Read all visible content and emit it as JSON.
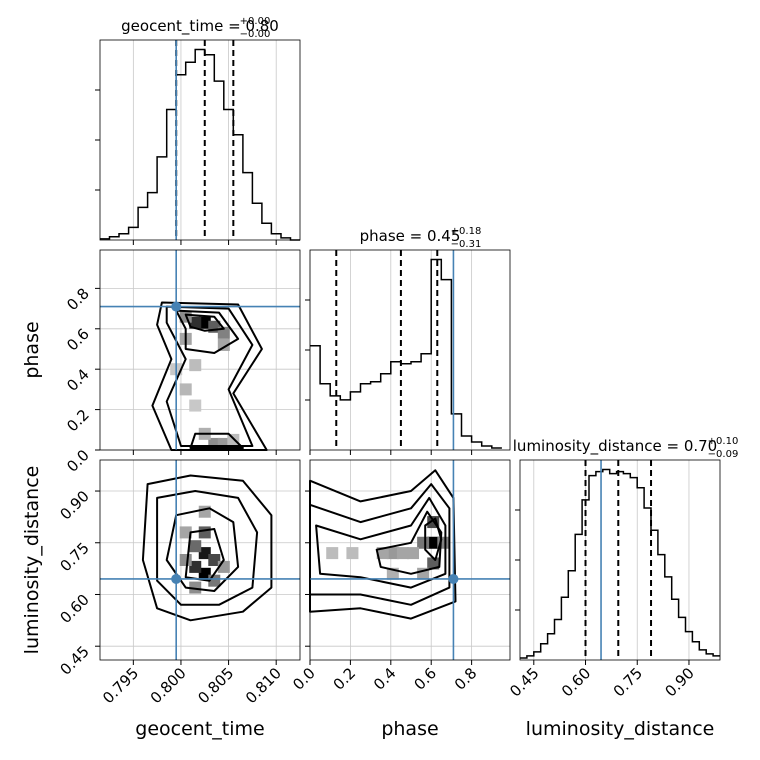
{
  "chart_data": {
    "type": "corner",
    "parameters": [
      "geocent_time",
      "phase",
      "luminosity_distance"
    ],
    "axis_labels": [
      "geocent_time",
      "phase",
      "luminosity_distance"
    ],
    "ranges": [
      [
        0.7915,
        0.8125
      ],
      [
        0.0,
        0.99
      ],
      [
        0.41,
        0.99
      ]
    ],
    "ticks": {
      "geocent_time": {
        "values": [
          0.795,
          0.8,
          0.805,
          0.81
        ],
        "labels": [
          "0.795",
          "0.800",
          "0.805",
          "0.810"
        ]
      },
      "phase": {
        "values": [
          0.0,
          0.2,
          0.4,
          0.6,
          0.8
        ],
        "labels": [
          "0.0",
          "0.2",
          "0.4",
          "0.6",
          "0.8"
        ]
      },
      "luminosity_distance": {
        "values": [
          0.45,
          0.6,
          0.75,
          0.9
        ],
        "labels": [
          "0.45",
          "0.60",
          "0.75",
          "0.90"
        ]
      }
    },
    "truths": [
      0.7995,
      0.71,
      0.645
    ],
    "truth_color": "#4682b4",
    "titles": [
      {
        "param": "geocent_time",
        "median": "0.80",
        "plus": "+0.00",
        "minus": "−0.00"
      },
      {
        "param": "phase",
        "median": "0.45",
        "plus": "+0.18",
        "minus": "−0.31"
      },
      {
        "param": "luminosity_distance",
        "median": "0.70",
        "plus": "+0.10",
        "minus": "−0.09"
      }
    ],
    "quantiles": {
      "geocent_time": [
        0.7995,
        0.8025,
        0.8055
      ],
      "phase": [
        0.13,
        0.45,
        0.63
      ],
      "luminosity_distance": [
        0.6,
        0.695,
        0.79
      ]
    },
    "histograms": {
      "geocent_time": {
        "edges": [
          0.7915,
          0.7925,
          0.7935,
          0.7945,
          0.7955,
          0.7965,
          0.7975,
          0.7985,
          0.7995,
          0.8005,
          0.8015,
          0.8025,
          0.8035,
          0.8045,
          0.8055,
          0.8065,
          0.8075,
          0.8085,
          0.8095,
          0.8105,
          0.8115,
          0.8125
        ],
        "counts": [
          1,
          3,
          6,
          12,
          31,
          45,
          79,
          124,
          157,
          169,
          181,
          176,
          151,
          124,
          100,
          64,
          35,
          16,
          6,
          2,
          0
        ]
      },
      "phase": {
        "edges": [
          0.0,
          0.05,
          0.1,
          0.15,
          0.2,
          0.25,
          0.3,
          0.35,
          0.4,
          0.45,
          0.5,
          0.55,
          0.6,
          0.65,
          0.7,
          0.75,
          0.8,
          0.85,
          0.9,
          0.95
        ],
        "counts": [
          0.52,
          0.33,
          0.27,
          0.25,
          0.29,
          0.33,
          0.34,
          0.38,
          0.44,
          0.43,
          0.44,
          0.48,
          0.95,
          0.85,
          0.18,
          0.07,
          0.04,
          0.02,
          0.01
        ]
      },
      "luminosity_distance": {
        "edges": [
          0.41,
          0.43,
          0.45,
          0.47,
          0.49,
          0.51,
          0.53,
          0.55,
          0.57,
          0.59,
          0.61,
          0.63,
          0.65,
          0.67,
          0.69,
          0.71,
          0.73,
          0.75,
          0.77,
          0.79,
          0.81,
          0.83,
          0.85,
          0.87,
          0.89,
          0.91,
          0.93,
          0.95,
          0.97,
          0.99
        ],
        "counts": [
          1,
          2,
          4,
          8,
          13,
          20,
          31,
          44,
          62,
          79,
          91,
          93,
          94,
          92,
          93,
          92,
          90,
          85,
          75,
          64,
          52,
          41,
          30,
          21,
          14,
          9,
          5,
          3,
          2
        ]
      }
    },
    "density_panels": [
      {
        "x": "geocent_time",
        "y": "phase",
        "cells": [
          [
            0.8025,
            0.63,
            1.0
          ],
          [
            0.8015,
            0.63,
            0.8
          ],
          [
            0.8035,
            0.61,
            0.6
          ],
          [
            0.8045,
            0.58,
            0.45
          ],
          [
            0.8005,
            0.66,
            0.4
          ],
          [
            0.8045,
            0.52,
            0.3
          ],
          [
            0.8005,
            0.55,
            0.3
          ],
          [
            0.8015,
            0.42,
            0.2
          ],
          [
            0.8005,
            0.3,
            0.22
          ],
          [
            0.8015,
            0.22,
            0.15
          ],
          [
            0.8035,
            0.03,
            0.4
          ],
          [
            0.8045,
            0.03,
            0.35
          ],
          [
            0.8025,
            0.08,
            0.25
          ],
          [
            0.8055,
            0.05,
            0.2
          ],
          [
            0.7995,
            0.4,
            0.15
          ]
        ],
        "contours": [
          [
            [
              0.798,
              0.73
            ],
            [
              0.806,
              0.72
            ],
            [
              0.8085,
              0.5
            ],
            [
              0.8055,
              0.28
            ],
            [
              0.809,
              0.0
            ],
            [
              0.799,
              0.0
            ],
            [
              0.797,
              0.22
            ],
            [
              0.799,
              0.45
            ],
            [
              0.7975,
              0.62
            ]
          ],
          [
            [
              0.7985,
              0.71
            ],
            [
              0.805,
              0.7
            ],
            [
              0.8075,
              0.52
            ],
            [
              0.805,
              0.3
            ],
            [
              0.8075,
              0.02
            ],
            [
              0.8,
              0.02
            ],
            [
              0.7985,
              0.24
            ],
            [
              0.8005,
              0.45
            ],
            [
              0.7985,
              0.63
            ]
          ],
          [
            [
              0.7995,
              0.69
            ],
            [
              0.804,
              0.68
            ],
            [
              0.806,
              0.55
            ],
            [
              0.8035,
              0.48
            ],
            [
              0.8005,
              0.5
            ],
            [
              0.8005,
              0.6
            ]
          ],
          [
            [
              0.8005,
              0.67
            ],
            [
              0.8035,
              0.66
            ],
            [
              0.8045,
              0.6
            ],
            [
              0.8025,
              0.59
            ],
            [
              0.801,
              0.61
            ]
          ],
          [
            [
              0.8015,
              0.08
            ],
            [
              0.805,
              0.08
            ],
            [
              0.8065,
              0.01
            ],
            [
              0.801,
              0.01
            ]
          ]
        ]
      },
      {
        "x": "geocent_time",
        "y": "luminosity_distance",
        "cells": [
          [
            0.8025,
            0.72,
            0.9
          ],
          [
            0.8025,
            0.66,
            1.0
          ],
          [
            0.8015,
            0.68,
            0.8
          ],
          [
            0.8035,
            0.7,
            0.7
          ],
          [
            0.8025,
            0.78,
            0.6
          ],
          [
            0.8015,
            0.74,
            0.55
          ],
          [
            0.8035,
            0.64,
            0.5
          ],
          [
            0.8005,
            0.7,
            0.4
          ],
          [
            0.8045,
            0.68,
            0.35
          ],
          [
            0.8015,
            0.62,
            0.4
          ],
          [
            0.8025,
            0.84,
            0.3
          ],
          [
            0.8005,
            0.78,
            0.3
          ]
        ],
        "contours": [
          [
            [
              0.7965,
              0.92
            ],
            [
              0.801,
              0.945
            ],
            [
              0.8065,
              0.93
            ],
            [
              0.8095,
              0.83
            ],
            [
              0.8095,
              0.62
            ],
            [
              0.8065,
              0.55
            ],
            [
              0.801,
              0.525
            ],
            [
              0.7975,
              0.56
            ],
            [
              0.796,
              0.7
            ]
          ],
          [
            [
              0.7975,
              0.88
            ],
            [
              0.8015,
              0.9
            ],
            [
              0.806,
              0.88
            ],
            [
              0.808,
              0.78
            ],
            [
              0.8075,
              0.62
            ],
            [
              0.804,
              0.57
            ],
            [
              0.8,
              0.57
            ],
            [
              0.7975,
              0.64
            ]
          ],
          [
            [
              0.7995,
              0.83
            ],
            [
              0.803,
              0.85
            ],
            [
              0.8055,
              0.81
            ],
            [
              0.806,
              0.68
            ],
            [
              0.8035,
              0.61
            ],
            [
              0.8005,
              0.62
            ],
            [
              0.7985,
              0.7
            ]
          ],
          [
            [
              0.801,
              0.78
            ],
            [
              0.8035,
              0.79
            ],
            [
              0.8045,
              0.7
            ],
            [
              0.803,
              0.64
            ],
            [
              0.8005,
              0.65
            ]
          ]
        ]
      },
      {
        "x": "phase",
        "y": "luminosity_distance",
        "cells": [
          [
            0.61,
            0.75,
            1.0
          ],
          [
            0.61,
            0.81,
            0.7
          ],
          [
            0.61,
            0.69,
            0.6
          ],
          [
            0.56,
            0.75,
            0.5
          ],
          [
            0.66,
            0.75,
            0.45
          ],
          [
            0.41,
            0.72,
            0.35
          ],
          [
            0.36,
            0.72,
            0.3
          ],
          [
            0.46,
            0.72,
            0.3
          ],
          [
            0.51,
            0.72,
            0.3
          ],
          [
            0.11,
            0.72,
            0.2
          ],
          [
            0.21,
            0.72,
            0.2
          ],
          [
            0.41,
            0.66,
            0.25
          ],
          [
            0.56,
            0.66,
            0.3
          ]
        ],
        "contours": [
          [
            [
              0.0,
              0.93
            ],
            [
              0.25,
              0.87
            ],
            [
              0.5,
              0.9
            ],
            [
              0.62,
              0.96
            ],
            [
              0.71,
              0.88
            ],
            [
              0.72,
              0.58
            ],
            [
              0.5,
              0.53
            ],
            [
              0.25,
              0.56
            ],
            [
              0.0,
              0.55
            ]
          ],
          [
            [
              0.0,
              0.86
            ],
            [
              0.25,
              0.81
            ],
            [
              0.5,
              0.85
            ],
            [
              0.6,
              0.92
            ],
            [
              0.69,
              0.85
            ],
            [
              0.69,
              0.62
            ],
            [
              0.5,
              0.57
            ],
            [
              0.25,
              0.6
            ],
            [
              0.0,
              0.6
            ]
          ],
          [
            [
              0.03,
              0.8
            ],
            [
              0.25,
              0.76
            ],
            [
              0.5,
              0.8
            ],
            [
              0.59,
              0.88
            ],
            [
              0.67,
              0.8
            ],
            [
              0.67,
              0.66
            ],
            [
              0.5,
              0.62
            ],
            [
              0.25,
              0.65
            ],
            [
              0.05,
              0.66
            ]
          ],
          [
            [
              0.33,
              0.73
            ],
            [
              0.5,
              0.75
            ],
            [
              0.58,
              0.84
            ],
            [
              0.65,
              0.78
            ],
            [
              0.64,
              0.68
            ],
            [
              0.5,
              0.66
            ],
            [
              0.35,
              0.68
            ]
          ],
          [
            [
              0.57,
              0.8
            ],
            [
              0.62,
              0.82
            ],
            [
              0.65,
              0.76
            ],
            [
              0.62,
              0.7
            ],
            [
              0.57,
              0.73
            ]
          ]
        ]
      }
    ]
  }
}
